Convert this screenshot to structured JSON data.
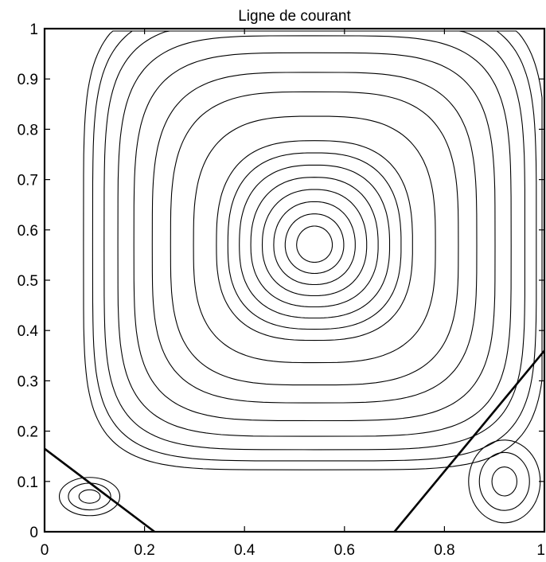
{
  "chart_data": {
    "type": "contour",
    "title": "Ligne de courant",
    "xlabel": "",
    "ylabel": "",
    "xlim": [
      0,
      1
    ],
    "ylim": [
      0,
      1
    ],
    "x_ticks": [
      0,
      0.2,
      0.4,
      0.6,
      0.8,
      1
    ],
    "x_tick_labels": [
      "0",
      "0.2",
      "0.4",
      "0.6",
      "0.8",
      "1"
    ],
    "y_ticks": [
      0,
      0.1,
      0.2,
      0.3,
      0.4,
      0.5,
      0.6,
      0.7,
      0.8,
      0.9,
      1
    ],
    "y_tick_labels": [
      "0",
      "0.1",
      "0.2",
      "0.3",
      "0.4",
      "0.5",
      "0.6",
      "0.7",
      "0.8",
      "0.9",
      "1"
    ],
    "grid": false,
    "legend": "none",
    "line_color": "#000000",
    "main_vortex_center": [
      0.54,
      0.57
    ],
    "secondary_vortices": [
      {
        "name": "bottom-left",
        "center": [
          0.09,
          0.07
        ],
        "separatrix_from": [
          0,
          0.165
        ],
        "separatrix_to": [
          0.22,
          0
        ]
      },
      {
        "name": "bottom-right",
        "center": [
          0.92,
          0.1
        ],
        "separatrix_from": [
          0.7,
          0
        ],
        "separatrix_to": [
          1,
          0.36
        ]
      }
    ]
  }
}
